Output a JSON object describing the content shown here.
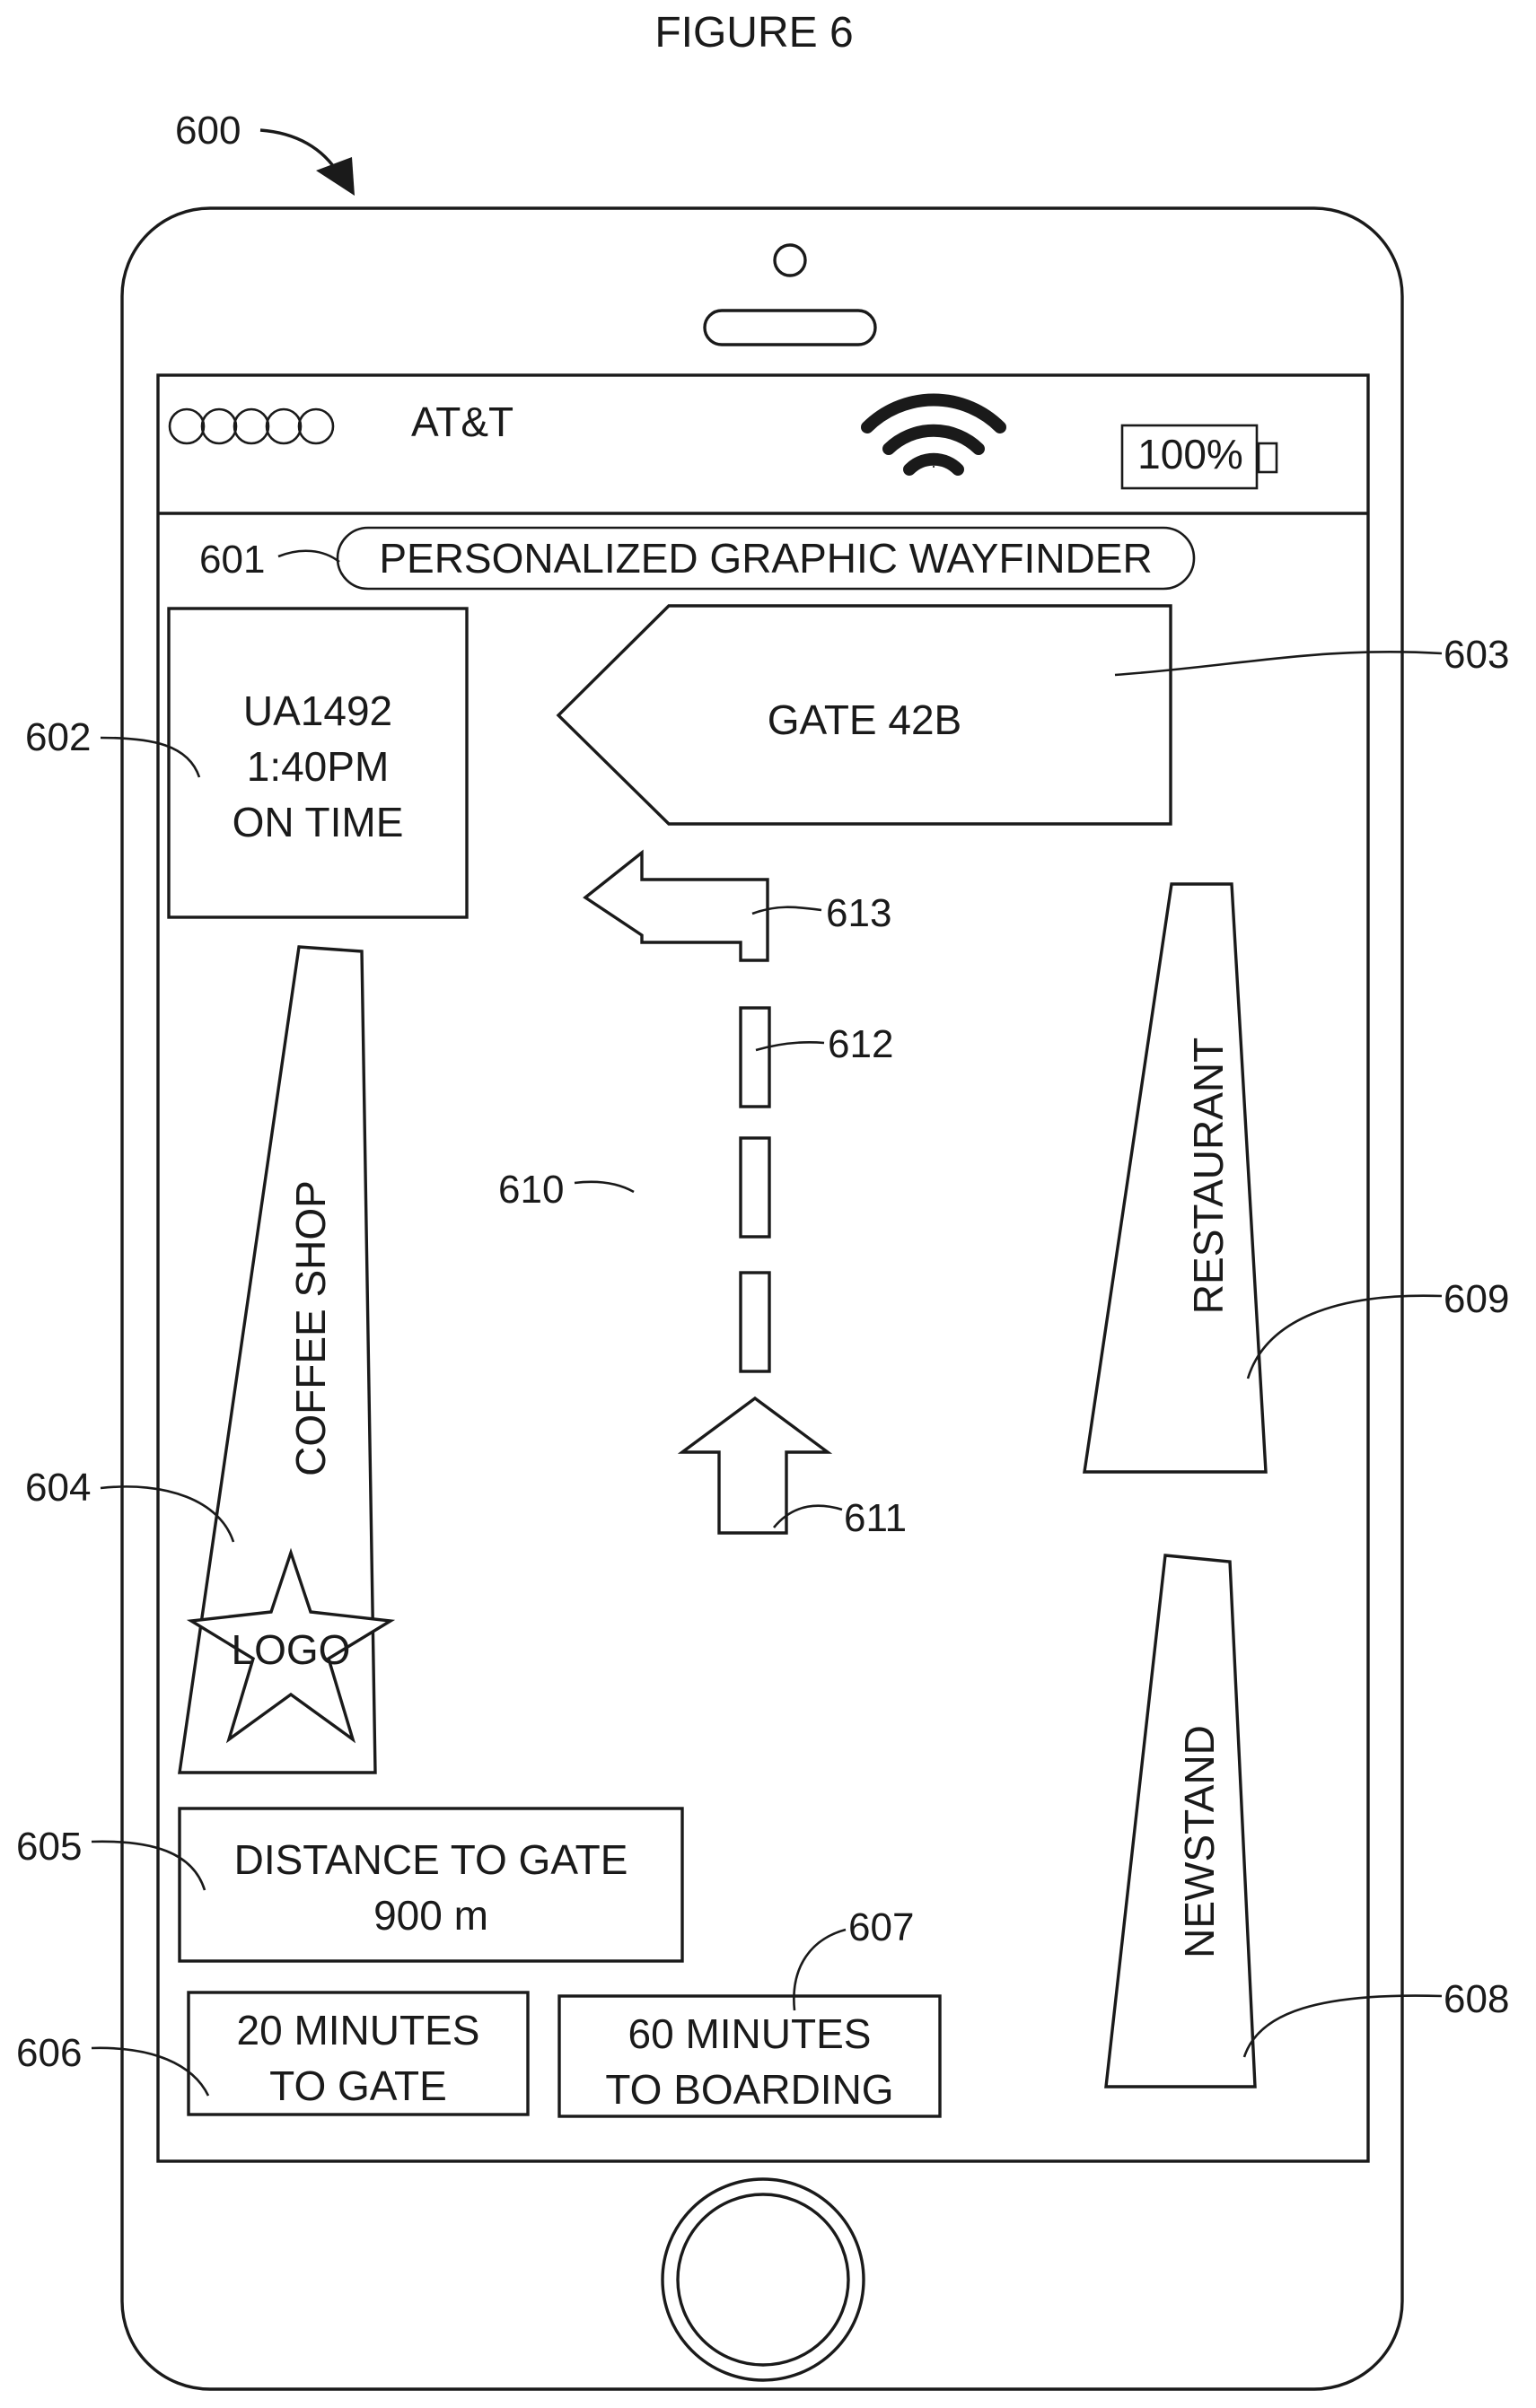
{
  "figure": {
    "title": "FIGURE 6",
    "device_ref": "600"
  },
  "status_bar": {
    "carrier": "AT&T",
    "battery": "100%",
    "signal_dots": 5
  },
  "app": {
    "title": "PERSONALIZED GRAPHIC WAYFINDER",
    "title_ref": "601",
    "flight": {
      "ref": "602",
      "lines": [
        "UA1492",
        "1:40PM",
        "ON TIME"
      ]
    },
    "gate_sign": {
      "ref": "603",
      "label": "GATE 42B"
    },
    "coffee_shop": {
      "ref": "604",
      "label": "COFFEE SHOP",
      "logo": "LOGO"
    },
    "distance": {
      "ref": "605",
      "lines": [
        "DISTANCE TO GATE",
        "900 m"
      ]
    },
    "time_to_gate": {
      "ref": "606",
      "lines": [
        "20 MINUTES",
        "TO GATE"
      ]
    },
    "time_to_boarding": {
      "ref": "607",
      "lines": [
        "60 MINUTES",
        "TO BOARDING"
      ]
    },
    "newsstand": {
      "ref": "608",
      "label": "NEWSTAND"
    },
    "restaurant": {
      "ref": "609",
      "label": "RESTAURANT"
    },
    "path": {
      "ref": "610",
      "start_arrow_ref": "611",
      "segment_ref": "612",
      "turn_arrow_ref": "613"
    }
  },
  "icons": [
    "signal-dots-icon",
    "wifi-icon",
    "battery-icon",
    "camera-icon",
    "speaker-icon",
    "home-button-icon",
    "star-logo-icon",
    "up-arrow-icon",
    "turn-left-arrow-icon"
  ]
}
